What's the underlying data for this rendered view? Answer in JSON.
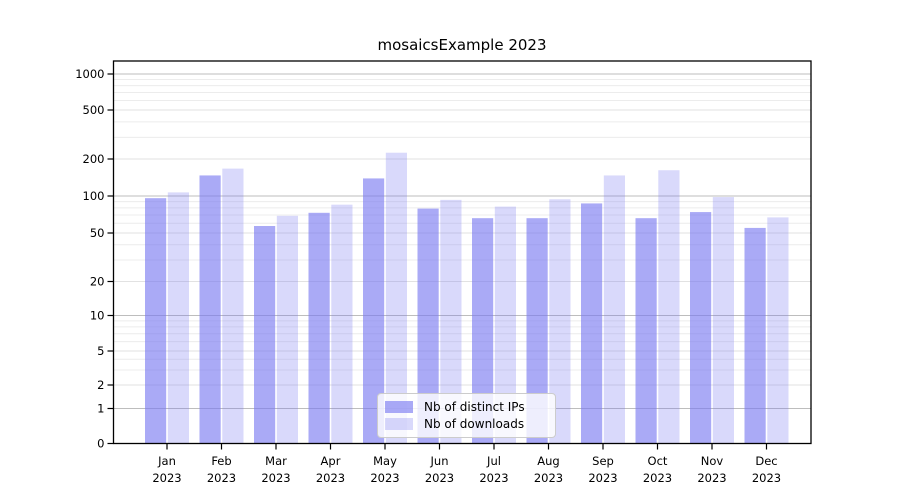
{
  "title": "mosaicsExample 2023",
  "legend": {
    "items": [
      {
        "label": "Nb of distinct IPs",
        "color": "rgba(120,120,240,0.63)"
      },
      {
        "label": "Nb of downloads",
        "color": "rgba(120,120,240,0.28)"
      }
    ]
  },
  "colors": {
    "bar_distinct_ips": "rgba(120,120,240,0.63)",
    "bar_downloads": "rgba(120,120,240,0.28)",
    "grid_major": "#bdbdbd",
    "grid_submajor": "#e2e2e2",
    "grid_minor": "#ececec",
    "axis": "#000000"
  },
  "chart_data": {
    "type": "bar",
    "title": "mosaicsExample 2023",
    "categories": [
      "Jan",
      "Feb",
      "Mar",
      "Apr",
      "May",
      "Jun",
      "Jul",
      "Aug",
      "Sep",
      "Oct",
      "Nov",
      "Dec"
    ],
    "x_year_label": "2023",
    "series": [
      {
        "name": "Nb of distinct IPs",
        "values": [
          96,
          147,
          57,
          73,
          139,
          79,
          66,
          66,
          87,
          66,
          74,
          55
        ]
      },
      {
        "name": "Nb of downloads",
        "values": [
          107,
          167,
          69,
          85,
          225,
          93,
          82,
          94,
          147,
          162,
          98,
          67
        ]
      }
    ],
    "ylabel": "",
    "xlabel": "",
    "y_ticks": [
      0,
      1,
      2,
      5,
      10,
      20,
      50,
      100,
      200,
      500,
      1000
    ],
    "yscale": "log-like (linear below 1)",
    "ylim": [
      0,
      1300
    ],
    "grid": true,
    "legend_position": "lower center"
  }
}
